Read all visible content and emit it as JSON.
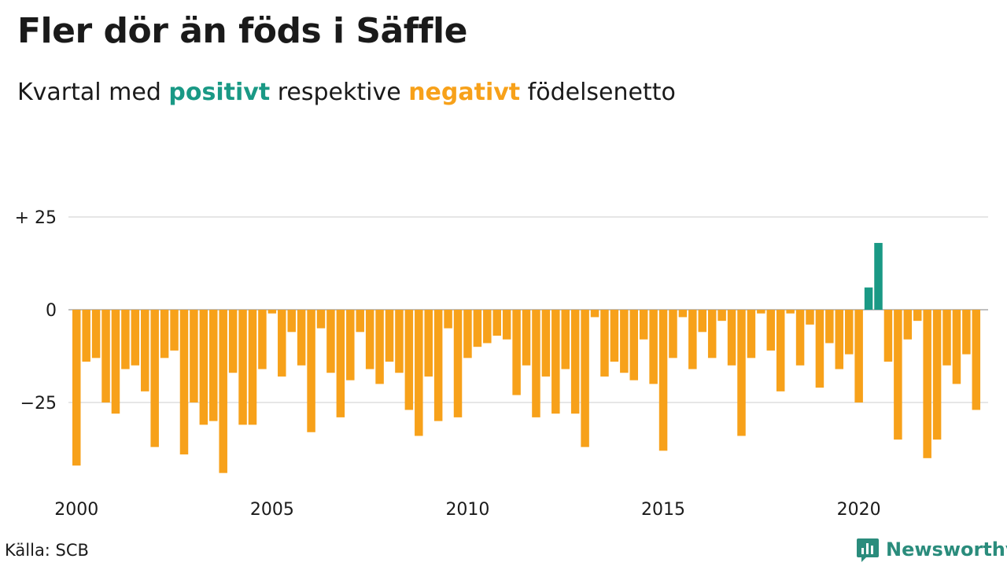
{
  "header": {
    "title": "Fler dör än föds i Säffle",
    "subtitle_parts": {
      "before": "Kvartal med ",
      "positive": "positivt",
      "middle": " respektive ",
      "negative": "negativt",
      "after": " födelsenetto"
    }
  },
  "footer": {
    "source": "Källa: SCB",
    "brand": "Newsworthy",
    "brand_icon": "bar-chart-icon"
  },
  "colors": {
    "positive": "#1a9985",
    "negative": "#f7a11a",
    "grid": "#dddddd",
    "brand": "#2a8c7c"
  },
  "chart_data": {
    "type": "bar",
    "title": "Fler dör än föds i Säffle",
    "subtitle": "Kvartal med positivt respektive negativt födelsenetto",
    "xlabel": "",
    "ylabel": "",
    "ylim": [
      -45,
      25
    ],
    "yticks": [
      {
        "value": 25,
        "label": "+ 25"
      },
      {
        "value": 0,
        "label": "0"
      },
      {
        "value": -25,
        "label": "−25"
      }
    ],
    "x_ticks": [
      "2000",
      "2005",
      "2010",
      "2015",
      "2020"
    ],
    "start_year": 2000,
    "periods_per_year": 4,
    "grid": true,
    "values": [
      -42,
      -14,
      -13,
      -25,
      -28,
      -16,
      -15,
      -22,
      -37,
      -13,
      -11,
      -39,
      -25,
      -31,
      -30,
      -44,
      -17,
      -31,
      -31,
      -16,
      -1,
      -18,
      -6,
      -15,
      -33,
      -5,
      -17,
      -29,
      -19,
      -6,
      -16,
      -20,
      -14,
      -17,
      -27,
      -34,
      -18,
      -30,
      -5,
      -29,
      -13,
      -10,
      -9,
      -7,
      -8,
      -23,
      -15,
      -29,
      -18,
      -28,
      -16,
      -28,
      -37,
      -2,
      -18,
      -14,
      -17,
      -19,
      -8,
      -20,
      -38,
      -13,
      -2,
      -16,
      -6,
      -13,
      -3,
      -15,
      -34,
      -13,
      -1,
      -11,
      -22,
      -1,
      -15,
      -4,
      -21,
      -9,
      -16,
      -12,
      -25,
      6,
      18,
      -14,
      -35,
      -8,
      -3,
      -40,
      -35,
      -15,
      -20,
      -12,
      -27
    ]
  }
}
